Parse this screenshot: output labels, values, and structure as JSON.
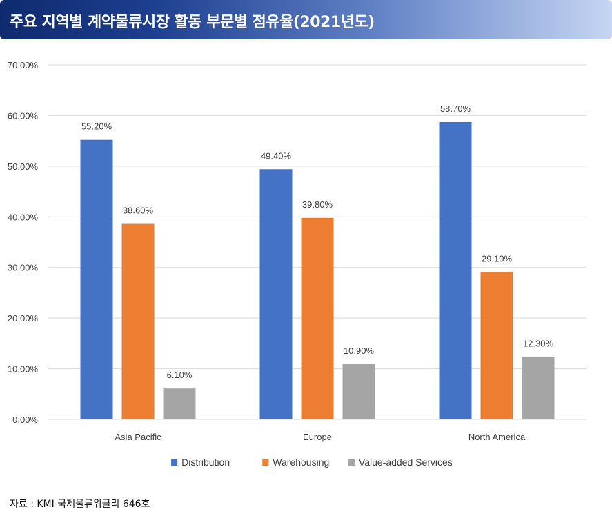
{
  "header": {
    "title": "주요 지역별 계약물류시장 활동 부문별 점유율(2021년도)"
  },
  "footer": {
    "source": "자료 : KMI 국제물류위클리 646호"
  },
  "colors": {
    "Distribution": "#4472c4",
    "Warehousing": "#ed7d31",
    "Value-added Services": "#a5a5a5",
    "grid": "#d9d9d9"
  },
  "chart_data": {
    "type": "bar",
    "title": "",
    "xlabel": "",
    "ylabel": "",
    "ylim": [
      0,
      70
    ],
    "yticks": [
      "0.00%",
      "10.00%",
      "20.00%",
      "30.00%",
      "40.00%",
      "50.00%",
      "60.00%",
      "70.00%"
    ],
    "grid": true,
    "legend": "bottom",
    "categories": [
      "Asia Pacific",
      "Europe",
      "North America"
    ],
    "series": [
      {
        "name": "Distribution",
        "values": [
          55.2,
          49.4,
          58.7
        ],
        "labels": [
          "55.20%",
          "49.40%",
          "58.70%"
        ]
      },
      {
        "name": "Warehousing",
        "values": [
          38.6,
          39.8,
          29.1
        ],
        "labels": [
          "38.60%",
          "39.80%",
          "29.10%"
        ]
      },
      {
        "name": "Value-added Services",
        "values": [
          6.1,
          10.9,
          12.3
        ],
        "labels": [
          "6.10%",
          "10.90%",
          "12.30%"
        ]
      }
    ]
  }
}
